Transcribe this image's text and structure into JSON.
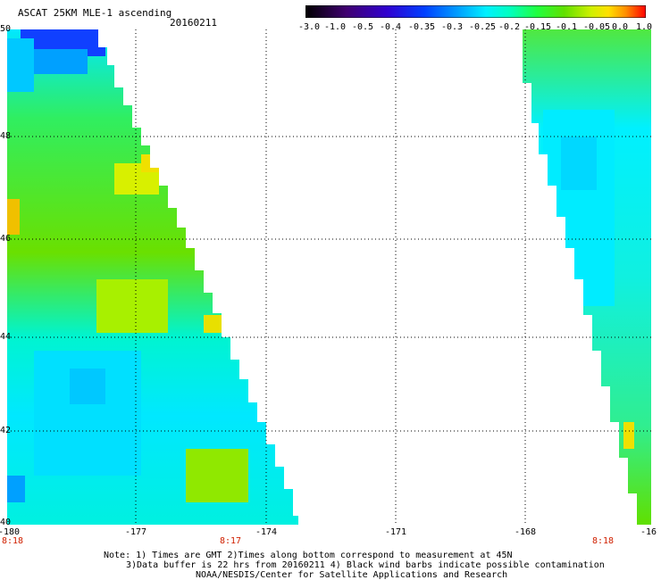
{
  "header": {
    "title": "ASCAT 25KM MLE-1 ascending",
    "date": "20160211"
  },
  "colorbar": {
    "labels": [
      "-3.0",
      "-1.0",
      "-0.5",
      "-0.4",
      "-0.35",
      "-0.3",
      "-0.25",
      "-0.2",
      "-0.15",
      "-0.1",
      "-0.05",
      "0.0",
      "1.0"
    ],
    "colors": [
      "#000000",
      "#3a0060",
      "#4000c0",
      "#0030ff",
      "#0080ff",
      "#00d0ff",
      "#00ffd0",
      "#00ff70",
      "#40e000",
      "#b0f000",
      "#ffe000",
      "#ff8000",
      "#ff0000"
    ]
  },
  "map": {
    "lat_labels": [
      "50",
      "48",
      "46",
      "44",
      "42",
      "40"
    ],
    "lon_labels": [
      "-180",
      "-177",
      "-174",
      "-171",
      "-168",
      "-16"
    ],
    "time_labels": [
      "8:18",
      "8:17",
      "8:18"
    ]
  },
  "notes": {
    "line1": "Note: 1) Times are GMT 2)Times along bottom correspond to measurement at 45N",
    "line2": "3)Data buffer is 22 hrs from 20160211 4) Black wind barbs indicate possible contamination",
    "line3": "NOAA/NESDIS/Center for Satellite Applications and Research"
  }
}
